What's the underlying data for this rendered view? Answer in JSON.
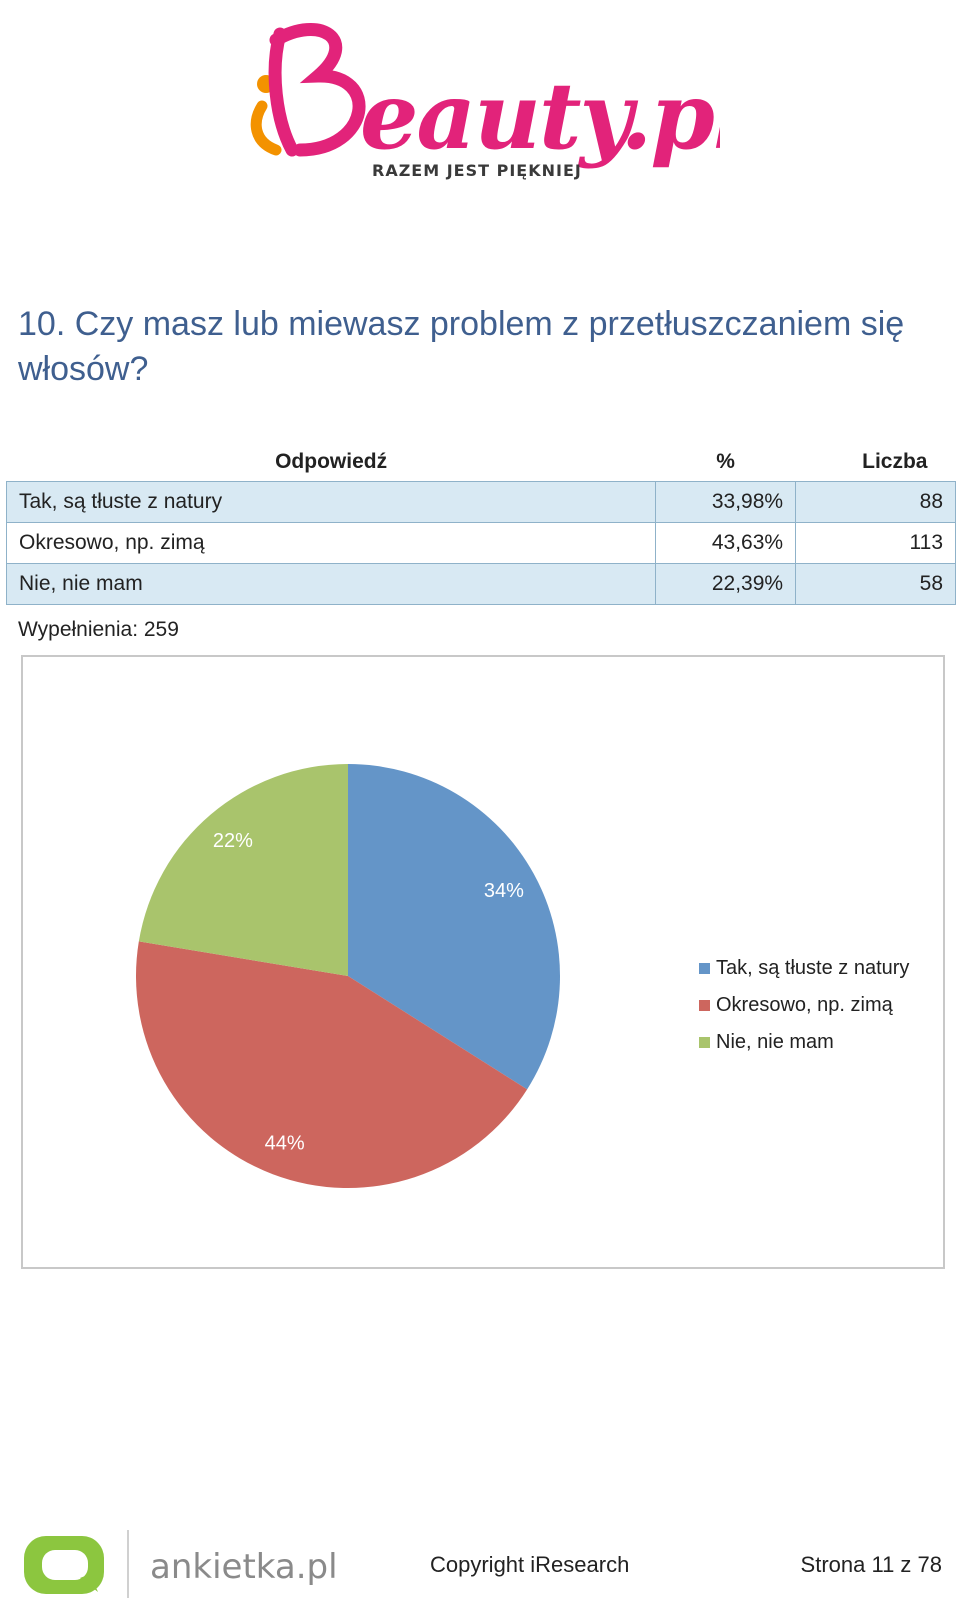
{
  "logo": {
    "name": "iBeauty.pl",
    "tagline": "RAZEM JEST PIĘKNIEJ",
    "colors": {
      "pink": "#e2237a",
      "orange": "#f39200",
      "dark": "#3a3a3a"
    }
  },
  "question": "10. Czy masz lub miewasz problem z przetłuszczaniem się włosów?",
  "table": {
    "headers": {
      "answer": "Odpowiedź",
      "percent": "%",
      "count": "Liczba"
    },
    "rows": [
      {
        "answer": "Tak, są tłuste z natury",
        "percent": "33,98%",
        "count": "88"
      },
      {
        "answer": "Okresowo, np. zimą",
        "percent": "43,63%",
        "count": "113"
      },
      {
        "answer": "Nie, nie mam",
        "percent": "22,39%",
        "count": "58"
      }
    ],
    "row_shading_color": "#d8e9f3"
  },
  "filled": "Wypełnienia: 259",
  "chart_data": {
    "type": "pie",
    "categories": [
      "Tak, są tłuste z natury",
      "Okresowo, np. zimą",
      "Nie, nie mam"
    ],
    "values": [
      33.98,
      43.63,
      22.39
    ],
    "labels": [
      "34%",
      "44%",
      "22%"
    ],
    "colors": [
      "#6495c8",
      "#cd665e",
      "#a9c46c"
    ],
    "start": "12 o'clock, clockwise",
    "legend_position": "right"
  },
  "footer": {
    "brand": "ankietka.pl",
    "brand_color": "#8cc63f",
    "copyright": "Copyright iResearch",
    "page": "Strona 11 z 78"
  }
}
